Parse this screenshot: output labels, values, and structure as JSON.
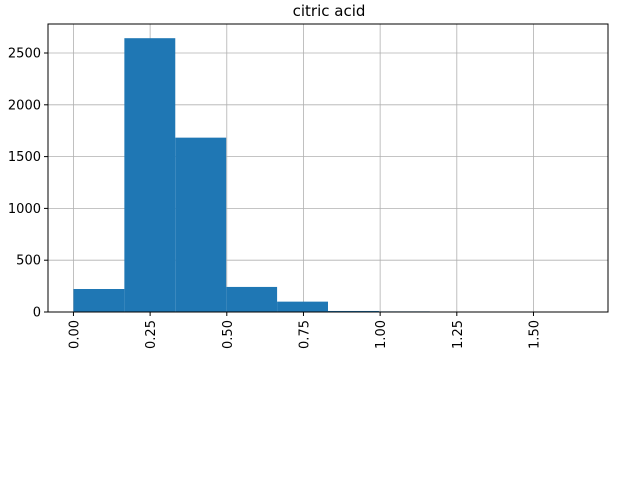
{
  "chart_data": {
    "type": "bar",
    "title": "citric acid",
    "xlabel": "",
    "ylabel": "",
    "grid": true,
    "bar_color": "#1f77b4",
    "xlim": [
      -0.083,
      1.743
    ],
    "ylim": [
      0,
      2780
    ],
    "bins": [
      {
        "start": 0.0,
        "end": 0.166,
        "count": 222
      },
      {
        "start": 0.166,
        "end": 0.332,
        "count": 2643
      },
      {
        "start": 0.332,
        "end": 0.498,
        "count": 1683
      },
      {
        "start": 0.498,
        "end": 0.664,
        "count": 242
      },
      {
        "start": 0.664,
        "end": 0.83,
        "count": 100
      },
      {
        "start": 0.83,
        "end": 0.996,
        "count": 10
      },
      {
        "start": 0.996,
        "end": 1.162,
        "count": 6
      },
      {
        "start": 1.162,
        "end": 1.328,
        "count": 1
      },
      {
        "start": 1.328,
        "end": 1.494,
        "count": 0
      },
      {
        "start": 1.494,
        "end": 1.66,
        "count": 1
      }
    ],
    "xticks": [
      0.0,
      0.25,
      0.5,
      0.75,
      1.0,
      1.25,
      1.5
    ],
    "xtick_labels": [
      "0.00",
      "0.25",
      "0.50",
      "0.75",
      "1.00",
      "1.25",
      "1.50"
    ],
    "yticks": [
      0,
      500,
      1000,
      1500,
      2000,
      2500
    ],
    "ytick_labels": [
      "0",
      "500",
      "1000",
      "1500",
      "2000",
      "2500"
    ]
  }
}
